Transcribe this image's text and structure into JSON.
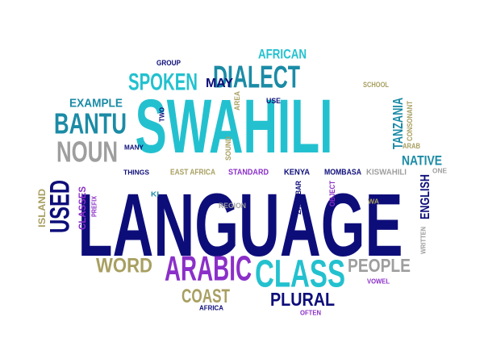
{
  "palette": {
    "navy": "#0d0d7a",
    "cyan": "#23c1cf",
    "teal": "#1b8ba6",
    "gray": "#9e9e9e",
    "khaki": "#a89f61",
    "purple": "#8b2fc9"
  },
  "words": [
    {
      "id": "language",
      "text": "LANGUAGE",
      "color": "navy"
    },
    {
      "id": "swahili",
      "text": "SWAHILI",
      "color": "cyan"
    },
    {
      "id": "dialect",
      "text": "DIALECT",
      "color": "teal"
    },
    {
      "id": "arabic",
      "text": "ARABIC",
      "color": "purple"
    },
    {
      "id": "class",
      "text": "CLASS",
      "color": "cyan"
    },
    {
      "id": "bantu",
      "text": "BANTU",
      "color": "teal"
    },
    {
      "id": "noun",
      "text": "NOUN",
      "color": "gray"
    },
    {
      "id": "spoken",
      "text": "SPOKEN",
      "color": "cyan"
    },
    {
      "id": "used",
      "text": "USED",
      "color": "navy"
    },
    {
      "id": "word",
      "text": "WORD",
      "color": "khaki"
    },
    {
      "id": "coast",
      "text": "COAST",
      "color": "khaki"
    },
    {
      "id": "plural",
      "text": "PLURAL",
      "color": "navy"
    },
    {
      "id": "people",
      "text": "PEOPLE",
      "color": "gray"
    },
    {
      "id": "tanzania",
      "text": "TANZANIA",
      "color": "teal"
    },
    {
      "id": "native",
      "text": "NATIVE",
      "color": "teal"
    },
    {
      "id": "english",
      "text": "ENGLISH",
      "color": "navy"
    },
    {
      "id": "african",
      "text": "AFRICAN",
      "color": "cyan"
    },
    {
      "id": "example",
      "text": "EXAMPLE",
      "color": "teal"
    },
    {
      "id": "may",
      "text": "MAY",
      "color": "navy"
    },
    {
      "id": "classes",
      "text": "CLASSES",
      "color": "purple"
    },
    {
      "id": "island",
      "text": "ISLAND",
      "color": "khaki"
    },
    {
      "id": "mombasa",
      "text": "MOMBASA",
      "color": "navy"
    },
    {
      "id": "kiswahili",
      "text": "KISWAHILI",
      "color": "gray"
    },
    {
      "id": "kenya",
      "text": "KENYA",
      "color": "navy"
    },
    {
      "id": "zanzibar",
      "text": "ZANZIBAR",
      "color": "navy"
    },
    {
      "id": "object",
      "text": "OBJECT",
      "color": "purple"
    },
    {
      "id": "east-africa",
      "text": "EAST AFRICA",
      "color": "khaki"
    },
    {
      "id": "standard",
      "text": "STANDARD",
      "color": "purple"
    },
    {
      "id": "region",
      "text": "REGION",
      "color": "gray"
    },
    {
      "id": "sound",
      "text": "SOUND",
      "color": "khaki"
    },
    {
      "id": "area",
      "text": "AREA",
      "color": "khaki"
    },
    {
      "id": "use",
      "text": "USE",
      "color": "navy"
    },
    {
      "id": "school",
      "text": "SCHOOL",
      "color": "khaki"
    },
    {
      "id": "consonant",
      "text": "CONSONANT",
      "color": "khaki"
    },
    {
      "id": "arab",
      "text": "ARAB",
      "color": "khaki"
    },
    {
      "id": "one",
      "text": "ONE",
      "color": "gray"
    },
    {
      "id": "group",
      "text": "GROUP",
      "color": "navy"
    },
    {
      "id": "two",
      "text": "TWO",
      "color": "navy"
    },
    {
      "id": "many",
      "text": "MANY",
      "color": "navy"
    },
    {
      "id": "things",
      "text": "THINGS",
      "color": "navy"
    },
    {
      "id": "ki",
      "text": "KI",
      "color": "teal"
    },
    {
      "id": "prefix",
      "text": "PREFIX",
      "color": "purple"
    },
    {
      "id": "wa",
      "text": "WA",
      "color": "khaki"
    },
    {
      "id": "written",
      "text": "WRITTEN",
      "color": "gray"
    },
    {
      "id": "vowel",
      "text": "VOWEL",
      "color": "purple"
    },
    {
      "id": "africa",
      "text": "AFRICA",
      "color": "navy"
    },
    {
      "id": "often",
      "text": "OFTEN",
      "color": "purple"
    }
  ]
}
